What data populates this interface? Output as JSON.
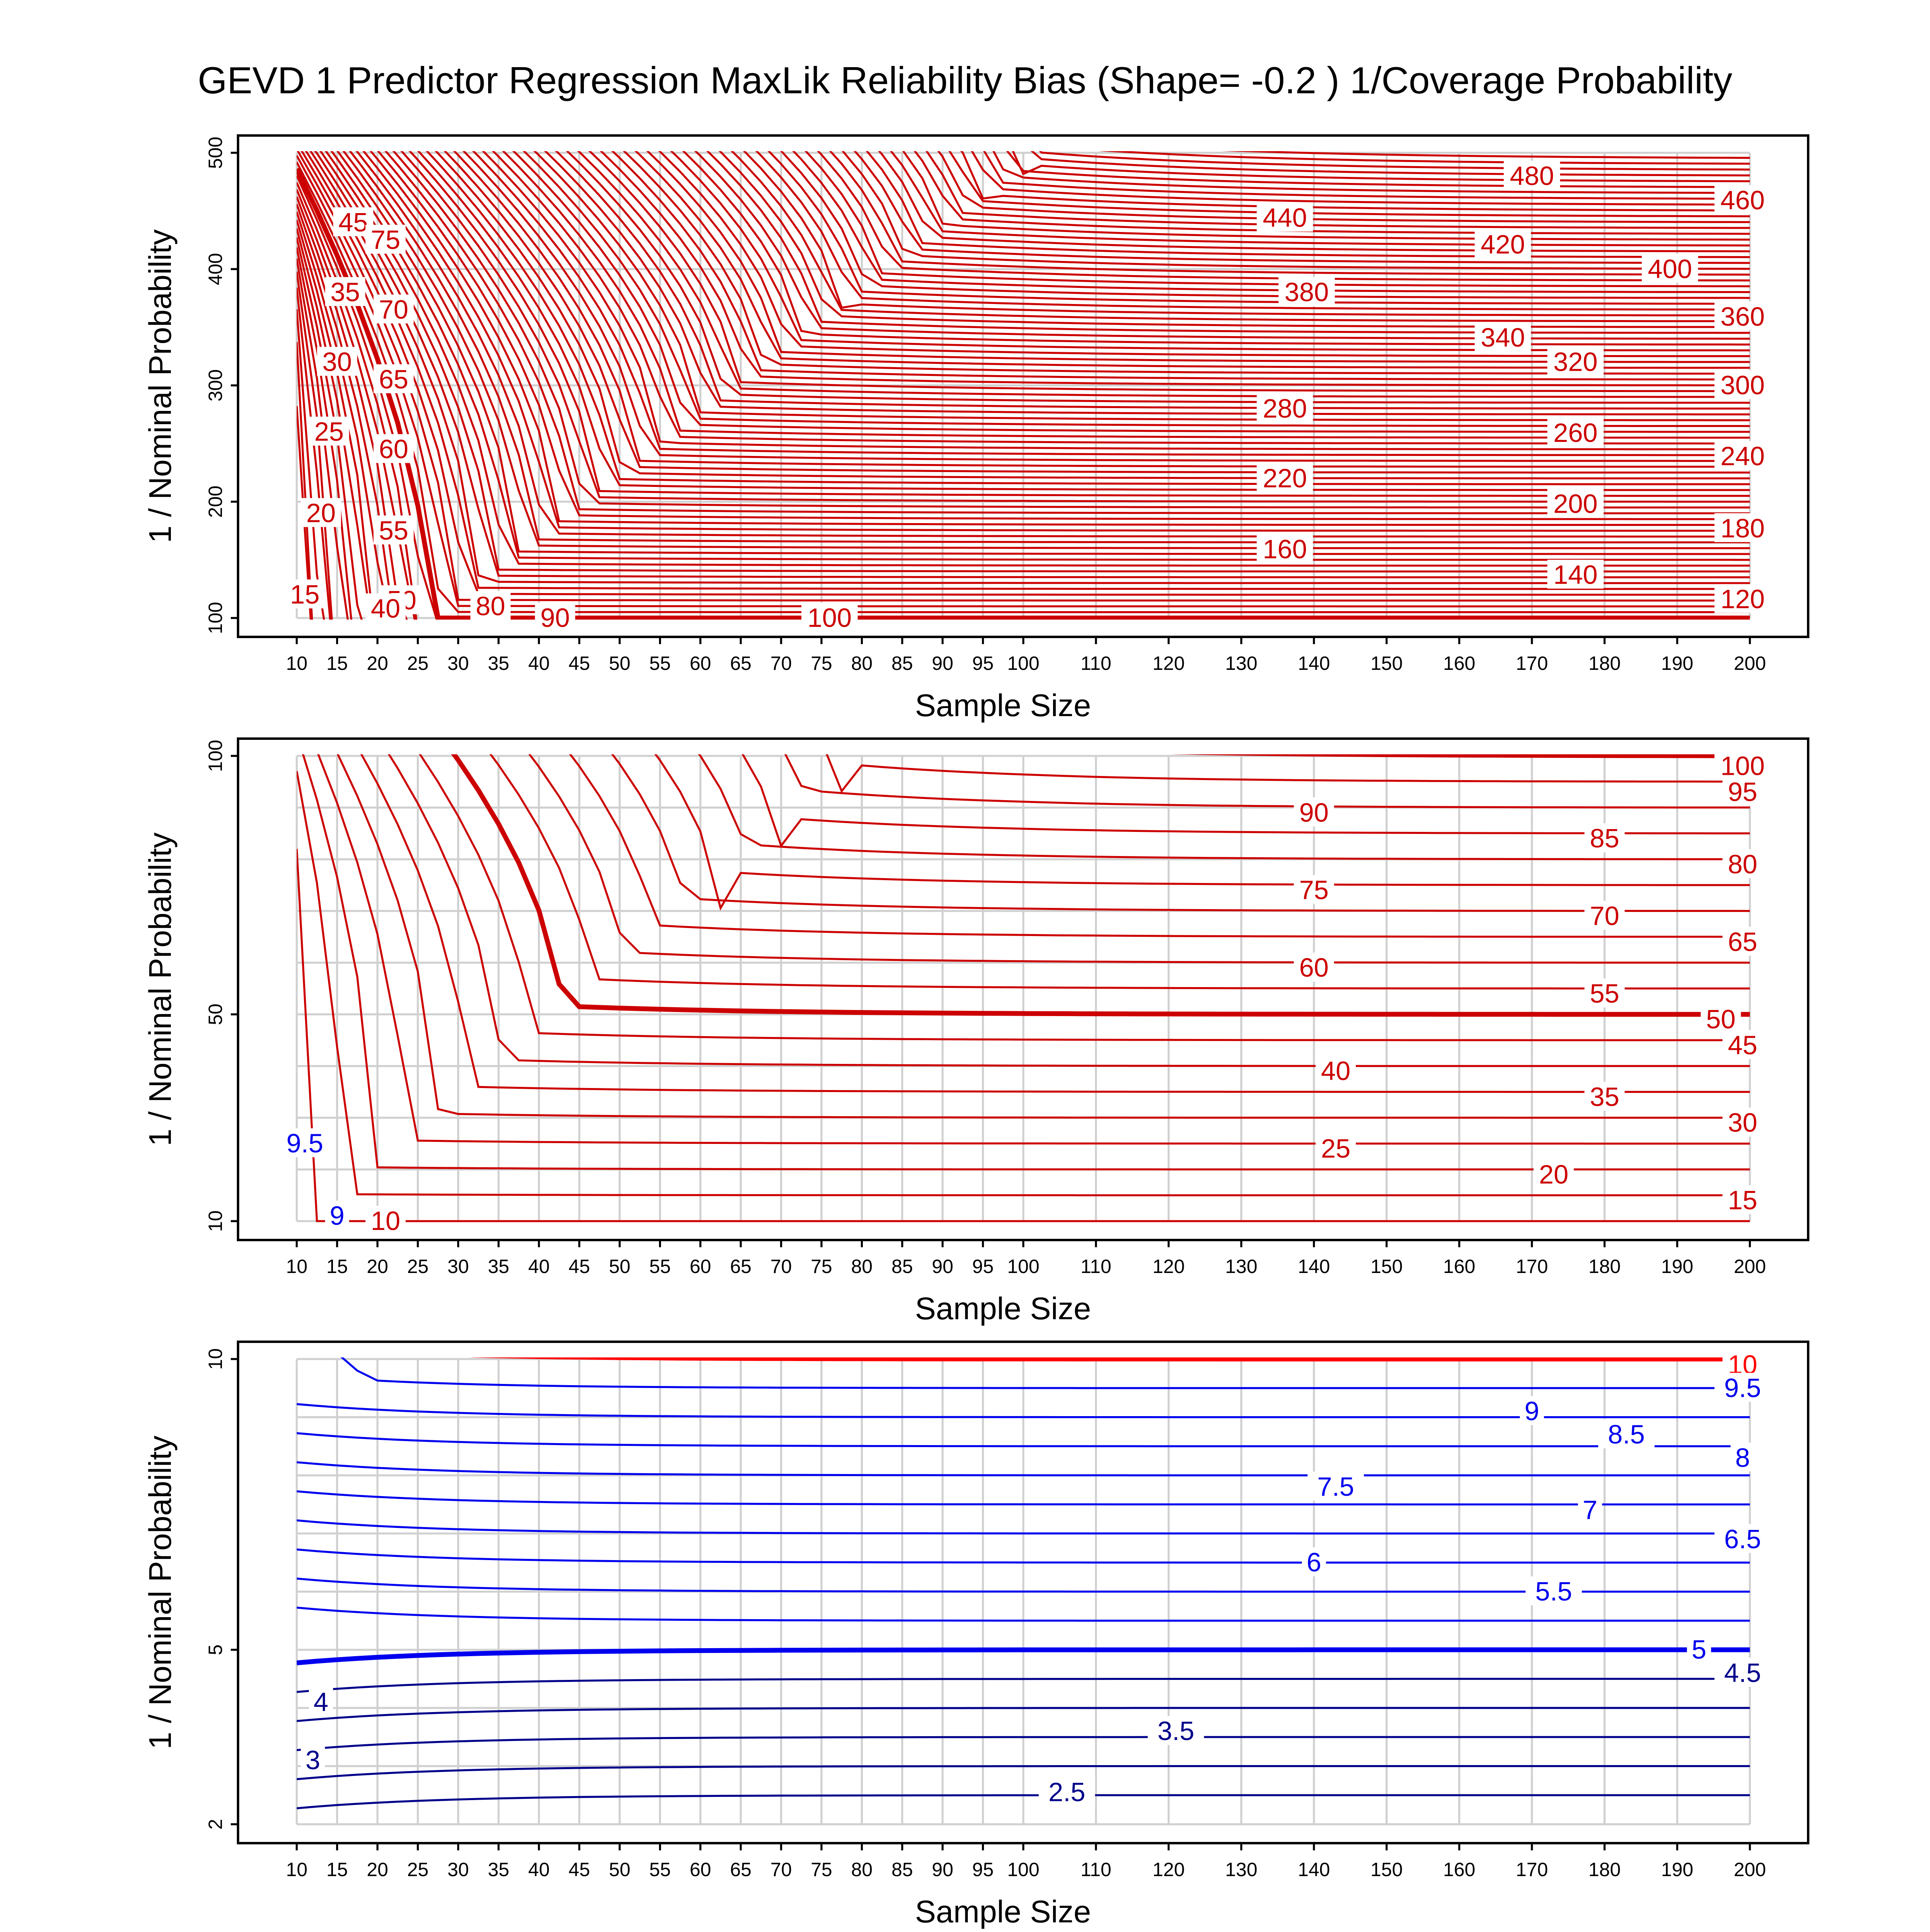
{
  "chart_data": {
    "title": "GEVD 1 Predictor Regression MaxLik Reliability Bias (Shape= -0.2 ) 1/Coverage Probability",
    "colors": {
      "red": "#cc0000",
      "bright_red": "#ff0000",
      "blue": "#0000ee",
      "dark_blue": "#00008b",
      "grid": "#d0d0d0"
    },
    "panels": [
      {
        "type": "contour",
        "xlabel": "Sample Size",
        "ylabel": "1 / Nominal Probability",
        "x_ticks": [
          10,
          15,
          20,
          25,
          30,
          35,
          40,
          45,
          50,
          55,
          60,
          65,
          70,
          75,
          80,
          85,
          90,
          95,
          100,
          110,
          120,
          130,
          140,
          150,
          160,
          170,
          180,
          190,
          200
        ],
        "y_ticks": [
          100,
          200,
          300,
          400,
          500
        ],
        "ylim": [
          100,
          500
        ],
        "levels_start": 15,
        "levels_step": 5,
        "levels_end": 495,
        "highlight_levels": [
          100
        ],
        "line_color": "#cc0000",
        "labels": [
          {
            "text": "480",
            "x": 170,
            "y": 480
          },
          {
            "text": "460",
            "x": 199,
            "y": 459
          },
          {
            "text": "440",
            "x": 136,
            "y": 444
          },
          {
            "text": "420",
            "x": 166,
            "y": 421
          },
          {
            "text": "400",
            "x": 189,
            "y": 400
          },
          {
            "text": "380",
            "x": 139,
            "y": 380
          },
          {
            "text": "360",
            "x": 199,
            "y": 359
          },
          {
            "text": "340",
            "x": 166,
            "y": 341
          },
          {
            "text": "320",
            "x": 176,
            "y": 320
          },
          {
            "text": "300",
            "x": 199,
            "y": 300
          },
          {
            "text": "280",
            "x": 136,
            "y": 280
          },
          {
            "text": "260",
            "x": 176,
            "y": 259
          },
          {
            "text": "240",
            "x": 199,
            "y": 239
          },
          {
            "text": "220",
            "x": 136,
            "y": 220
          },
          {
            "text": "200",
            "x": 176,
            "y": 198
          },
          {
            "text": "180",
            "x": 199,
            "y": 177
          },
          {
            "text": "160",
            "x": 136,
            "y": 159
          },
          {
            "text": "140",
            "x": 176,
            "y": 137
          },
          {
            "text": "120",
            "x": 199,
            "y": 116
          },
          {
            "text": "100",
            "x": 76,
            "y": 100
          },
          {
            "text": "90",
            "x": 42,
            "y": 100
          },
          {
            "text": "80",
            "x": 34,
            "y": 110
          },
          {
            "text": "45",
            "x": 17,
            "y": 440
          },
          {
            "text": "35",
            "x": 16,
            "y": 380
          },
          {
            "text": "30",
            "x": 15,
            "y": 320
          },
          {
            "text": "25",
            "x": 14,
            "y": 260
          },
          {
            "text": "20",
            "x": 13,
            "y": 190
          },
          {
            "text": "15",
            "x": 11,
            "y": 120
          },
          {
            "text": "75",
            "x": 21,
            "y": 425
          },
          {
            "text": "70",
            "x": 22,
            "y": 365
          },
          {
            "text": "65",
            "x": 22,
            "y": 305
          },
          {
            "text": "60",
            "x": 22,
            "y": 245
          },
          {
            "text": "55",
            "x": 22,
            "y": 175
          },
          {
            "text": "50",
            "x": 23,
            "y": 115
          },
          {
            "text": "40",
            "x": 21,
            "y": 108
          }
        ]
      },
      {
        "type": "contour",
        "xlabel": "Sample Size",
        "ylabel": "1 / Nominal Probability",
        "x_ticks": [
          10,
          15,
          20,
          25,
          30,
          35,
          40,
          45,
          50,
          55,
          60,
          65,
          70,
          75,
          80,
          85,
          90,
          95,
          100,
          110,
          120,
          130,
          140,
          150,
          160,
          170,
          180,
          190,
          200
        ],
        "y_ticks": [
          10,
          50,
          100
        ],
        "ylim": [
          10,
          100
        ],
        "levels_start": 10,
        "levels_step": 5,
        "levels_end": 100,
        "highlight_levels": [
          50,
          100
        ],
        "line_color": "#cc0000",
        "labels": [
          {
            "text": "100",
            "x": 199,
            "y": 98
          },
          {
            "text": "95",
            "x": 199,
            "y": 93
          },
          {
            "text": "90",
            "x": 140,
            "y": 89
          },
          {
            "text": "85",
            "x": 180,
            "y": 84
          },
          {
            "text": "80",
            "x": 199,
            "y": 79
          },
          {
            "text": "75",
            "x": 140,
            "y": 74
          },
          {
            "text": "70",
            "x": 180,
            "y": 69
          },
          {
            "text": "65",
            "x": 199,
            "y": 64
          },
          {
            "text": "60",
            "x": 140,
            "y": 59
          },
          {
            "text": "55",
            "x": 180,
            "y": 54
          },
          {
            "text": "50",
            "x": 196,
            "y": 49
          },
          {
            "text": "45",
            "x": 199,
            "y": 44
          },
          {
            "text": "40",
            "x": 143,
            "y": 39
          },
          {
            "text": "35",
            "x": 180,
            "y": 34
          },
          {
            "text": "30",
            "x": 199,
            "y": 29
          },
          {
            "text": "25",
            "x": 143,
            "y": 24
          },
          {
            "text": "20",
            "x": 173,
            "y": 19
          },
          {
            "text": "15",
            "x": 199,
            "y": 14
          },
          {
            "text": "10",
            "x": 21,
            "y": 10
          },
          {
            "text": "9.5",
            "x": 11,
            "y": 25
          },
          {
            "text": "9",
            "x": 15,
            "y": 11
          }
        ]
      },
      {
        "type": "contour",
        "xlabel": "Sample Size",
        "ylabel": "1 / Nominal Probability",
        "x_ticks": [
          10,
          15,
          20,
          25,
          30,
          35,
          40,
          45,
          50,
          55,
          60,
          65,
          70,
          75,
          80,
          85,
          90,
          95,
          100,
          110,
          120,
          130,
          140,
          150,
          160,
          170,
          180,
          190,
          200
        ],
        "y_ticks": [
          2,
          5,
          10
        ],
        "ylim": [
          2,
          10
        ],
        "levels_start": 2.5,
        "levels_step": 0.5,
        "levels_end": 10,
        "highlight_levels": [
          5,
          10
        ],
        "line_color": "#0000ee",
        "labels": [
          {
            "text": "10",
            "x": 199,
            "y": 9.9
          },
          {
            "text": "9.5",
            "x": 199,
            "y": 9.5
          },
          {
            "text": "9",
            "x": 170,
            "y": 9.1
          },
          {
            "text": "8.5",
            "x": 183,
            "y": 8.7
          },
          {
            "text": "8",
            "x": 199,
            "y": 8.3
          },
          {
            "text": "7.5",
            "x": 143,
            "y": 7.8
          },
          {
            "text": "7",
            "x": 178,
            "y": 7.4
          },
          {
            "text": "6.5",
            "x": 199,
            "y": 6.9
          },
          {
            "text": "6",
            "x": 140,
            "y": 6.5
          },
          {
            "text": "5.5",
            "x": 173,
            "y": 6.0
          },
          {
            "text": "5",
            "x": 193,
            "y": 5.0
          },
          {
            "text": "4.5",
            "x": 199,
            "y": 4.6
          },
          {
            "text": "4",
            "x": 13,
            "y": 4.1
          },
          {
            "text": "3.5",
            "x": 121,
            "y": 3.6
          },
          {
            "text": "3",
            "x": 12,
            "y": 3.1
          },
          {
            "text": "2.5",
            "x": 106,
            "y": 2.55
          }
        ]
      }
    ]
  },
  "panel_titles": {
    "x": "Sample Size",
    "y": "1 / Nominal Probability"
  }
}
